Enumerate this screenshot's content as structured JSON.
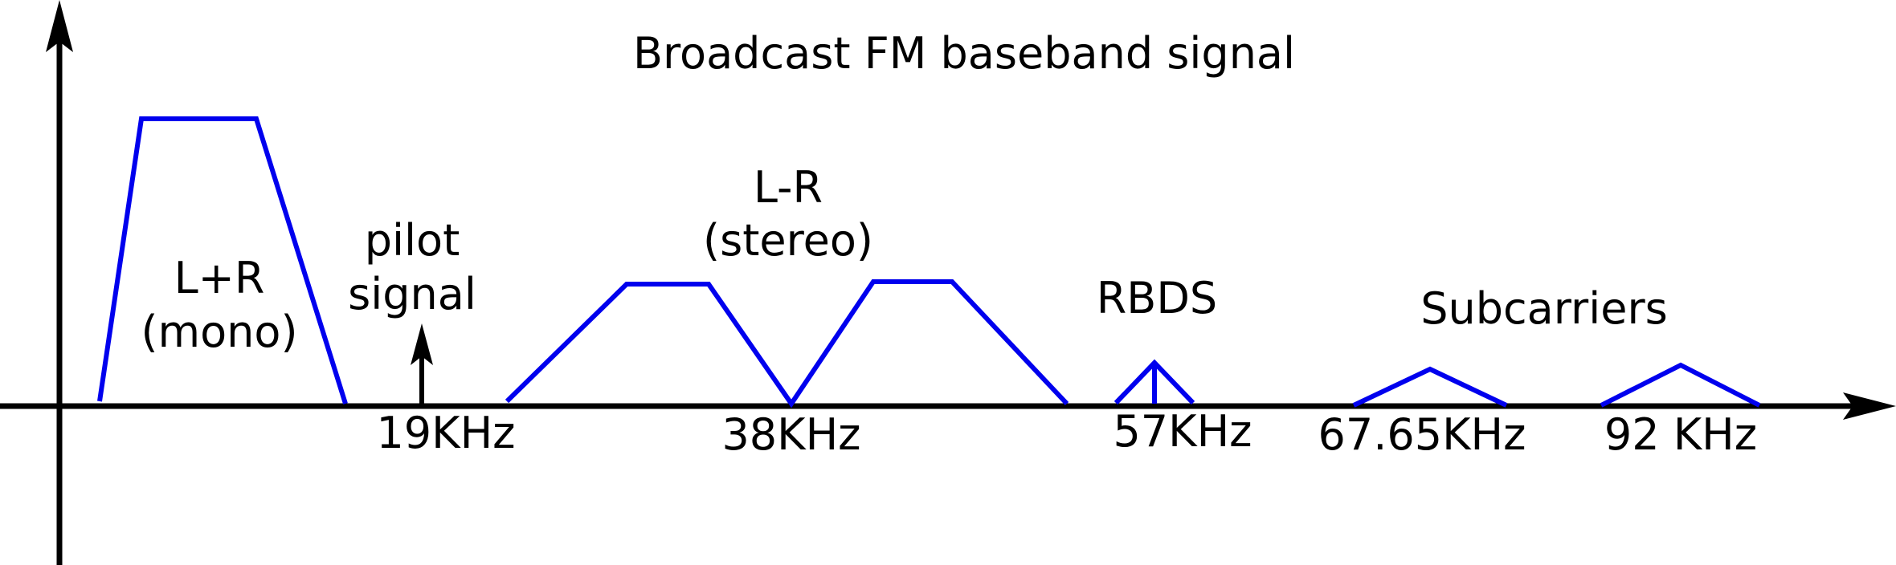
{
  "title": "Broadcast FM baseband signal",
  "colors": {
    "axis": "#000000",
    "spectrum": "#0000ee",
    "text": "#000000",
    "background": "#ffffff"
  },
  "bands": {
    "mono": {
      "line1": "L+R",
      "line2": "(mono)"
    },
    "pilot": {
      "line1": "pilot",
      "line2": "signal",
      "freq": "19KHz"
    },
    "stereo": {
      "line1": "L-R",
      "line2": "(stereo)",
      "freq": "38KHz"
    },
    "rbds": {
      "label": "RBDS",
      "freq": "57KHz"
    },
    "subcarriers": {
      "label": "Subcarriers",
      "freq1": "67.65KHz",
      "freq2": "92 KHz"
    }
  }
}
